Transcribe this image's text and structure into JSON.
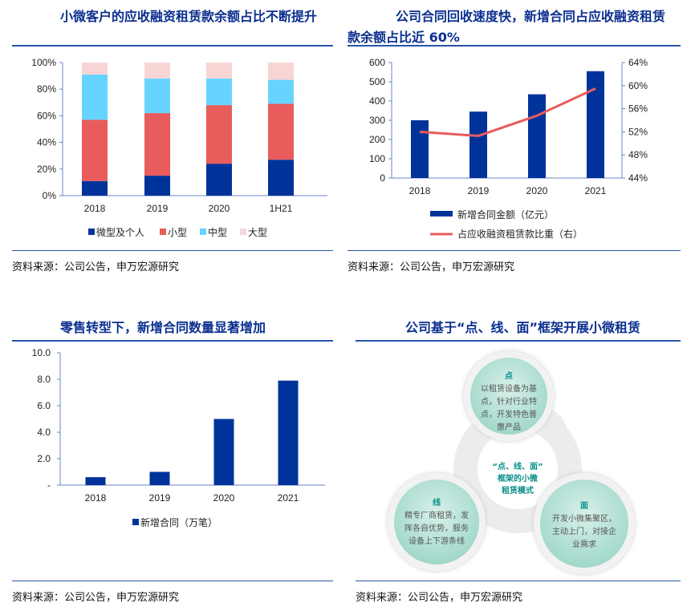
{
  "panels": [
    {
      "title": "小微客户的应收融资租赁款余额占比不断提升",
      "source": "资料来源：公司公告，申万宏源研究"
    },
    {
      "title": "公司合同回收速度快，新增合同占应收融资租赁款余额占比近 60%",
      "source": "资料来源：公司公告，申万宏源研究"
    },
    {
      "title": "零售转型下，新增合同数量显著增加",
      "source": "资料来源：公司公告，申万宏源研究"
    },
    {
      "title": "公司基于“点、线、面”框架开展小微租赁",
      "source": "资料来源：公司公告，申万宏源研究"
    }
  ],
  "diagram": {
    "center": [
      "“点、线、面”",
      "框架的小微",
      "租赁模式"
    ],
    "nodes": [
      {
        "label": "点",
        "text": "以租赁设备为基点，针对行业特点，开发特色普惠产品"
      },
      {
        "label": "线",
        "text": "精专厂商租赁，发挥各自优势，服务设备上下游条线"
      },
      {
        "label": "面",
        "text": "开发小微集聚区，主动上门，对接企业需求"
      }
    ]
  },
  "chart_data": [
    {
      "type": "bar",
      "stacked": true,
      "categories": [
        "2018",
        "2019",
        "2020",
        "1H21"
      ],
      "series": [
        {
          "name": "微型及个人",
          "color": "#003399",
          "values": [
            11,
            15,
            24,
            27
          ]
        },
        {
          "name": "小型",
          "color": "#e85c5c",
          "values": [
            46,
            47,
            44,
            42
          ]
        },
        {
          "name": "中型",
          "color": "#66d4ff",
          "values": [
            34,
            26,
            20,
            18
          ]
        },
        {
          "name": "大型",
          "color": "#f8d5d5",
          "values": [
            9,
            12,
            12,
            13
          ]
        }
      ],
      "ylim": [
        0,
        100
      ],
      "yticks": [
        "0%",
        "20%",
        "40%",
        "60%",
        "80%",
        "100%"
      ],
      "legend": "bottom"
    },
    {
      "type": "bar+line",
      "categories": [
        "2018",
        "2019",
        "2020",
        "2021"
      ],
      "series": [
        {
          "name": "新增合同金额（亿元）",
          "color": "#003399",
          "axis": "left",
          "values": [
            300,
            345,
            435,
            555
          ]
        },
        {
          "name": "占应收融资租赁款比重（右）",
          "color": "#e85c5c",
          "axis": "right",
          "values": [
            52.0,
            51.3,
            54.8,
            59.5
          ]
        }
      ],
      "ylim": [
        0,
        600
      ],
      "yticks": [
        "0",
        "100",
        "200",
        "300",
        "400",
        "500",
        "600"
      ],
      "y2lim": [
        44,
        64
      ],
      "y2ticks": [
        "44%",
        "48%",
        "52%",
        "56%",
        "60%",
        "64%"
      ],
      "legend": "bottom"
    },
    {
      "type": "bar",
      "categories": [
        "2018",
        "2019",
        "2020",
        "2021"
      ],
      "series": [
        {
          "name": "新增合同（万笔）",
          "color": "#003399",
          "values": [
            0.6,
            1.0,
            5.0,
            7.9
          ]
        }
      ],
      "ylim": [
        0,
        10
      ],
      "yticks": [
        "-",
        "2.0",
        "4.0",
        "6.0",
        "8.0",
        "10.0"
      ],
      "legend": "bottom"
    }
  ]
}
